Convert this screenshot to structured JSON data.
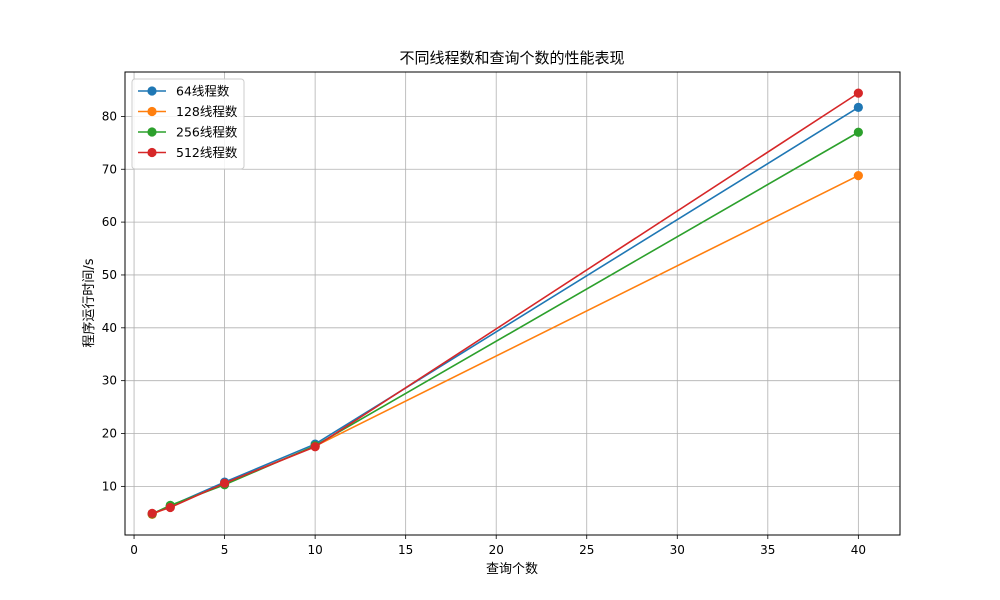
{
  "chart_data": {
    "type": "line",
    "title": "不同线程数和查询个数的性能表现",
    "xlabel": "查询个数",
    "ylabel": "程序运行时间/s",
    "x": [
      1,
      2,
      5,
      10,
      40
    ],
    "xlim": [
      -0.5,
      42.3
    ],
    "ylim": [
      0.8,
      88.4
    ],
    "xticks": [
      0,
      5,
      10,
      15,
      20,
      25,
      30,
      35,
      40
    ],
    "yticks": [
      10,
      20,
      30,
      40,
      50,
      60,
      70,
      80
    ],
    "grid": true,
    "legend_position": "top-left",
    "series": [
      {
        "name": "64线程数",
        "color": "#1f77b4",
        "values": [
          4.8,
          6.3,
          10.8,
          18.0,
          81.7
        ]
      },
      {
        "name": "128线程数",
        "color": "#ff7f0e",
        "values": [
          4.7,
          6.2,
          10.5,
          17.6,
          68.8
        ]
      },
      {
        "name": "256线程数",
        "color": "#2ca02c",
        "values": [
          4.8,
          6.4,
          10.3,
          17.7,
          77.0
        ]
      },
      {
        "name": "512线程数",
        "color": "#d62728",
        "values": [
          4.9,
          6.0,
          10.6,
          17.5,
          84.4
        ]
      }
    ]
  }
}
